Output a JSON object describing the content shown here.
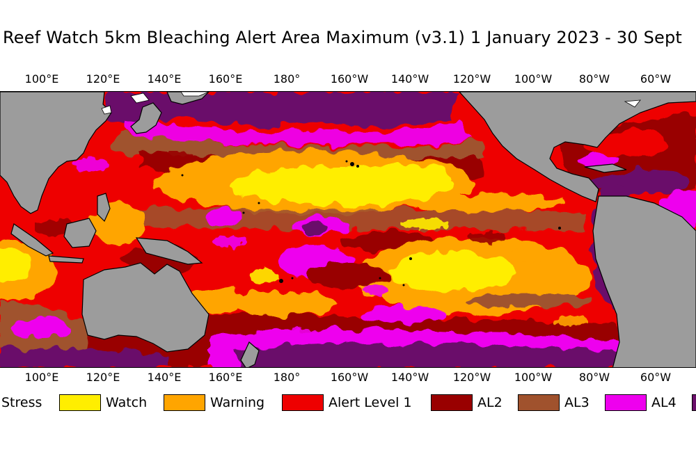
{
  "title": "Reef Watch 5km Bleaching Alert Area Maximum  (v3.1)   1 January 2023 - 30 Sept",
  "longitude_labels": [
    "100°E",
    "120°E",
    "140°E",
    "160°E",
    "180°",
    "160°W",
    "140°W",
    "120°W",
    "100°W",
    "80°W",
    "60°W"
  ],
  "legend": {
    "items": [
      {
        "label": "Stress",
        "color": null
      },
      {
        "label": "Watch",
        "color": "#ffee00"
      },
      {
        "label": "Warning",
        "color": "#ffa500"
      },
      {
        "label": "Alert Level 1",
        "color": "#ee0000"
      },
      {
        "label": "AL2",
        "color": "#990000"
      },
      {
        "label": "AL3",
        "color": "#a0522d"
      },
      {
        "label": "AL4",
        "color": "#ee00ee"
      },
      {
        "label": "",
        "color": "#6a0f6a"
      }
    ]
  },
  "colors": {
    "land": "#9c9c9c",
    "no_stress": "#ffffff",
    "watch": "#ffee00",
    "warning": "#ffa500",
    "alert_level_1": "#ee0000",
    "al2": "#990000",
    "al3": "#a0522d",
    "al4": "#ee00ee",
    "al5": "#6a0f6a"
  }
}
